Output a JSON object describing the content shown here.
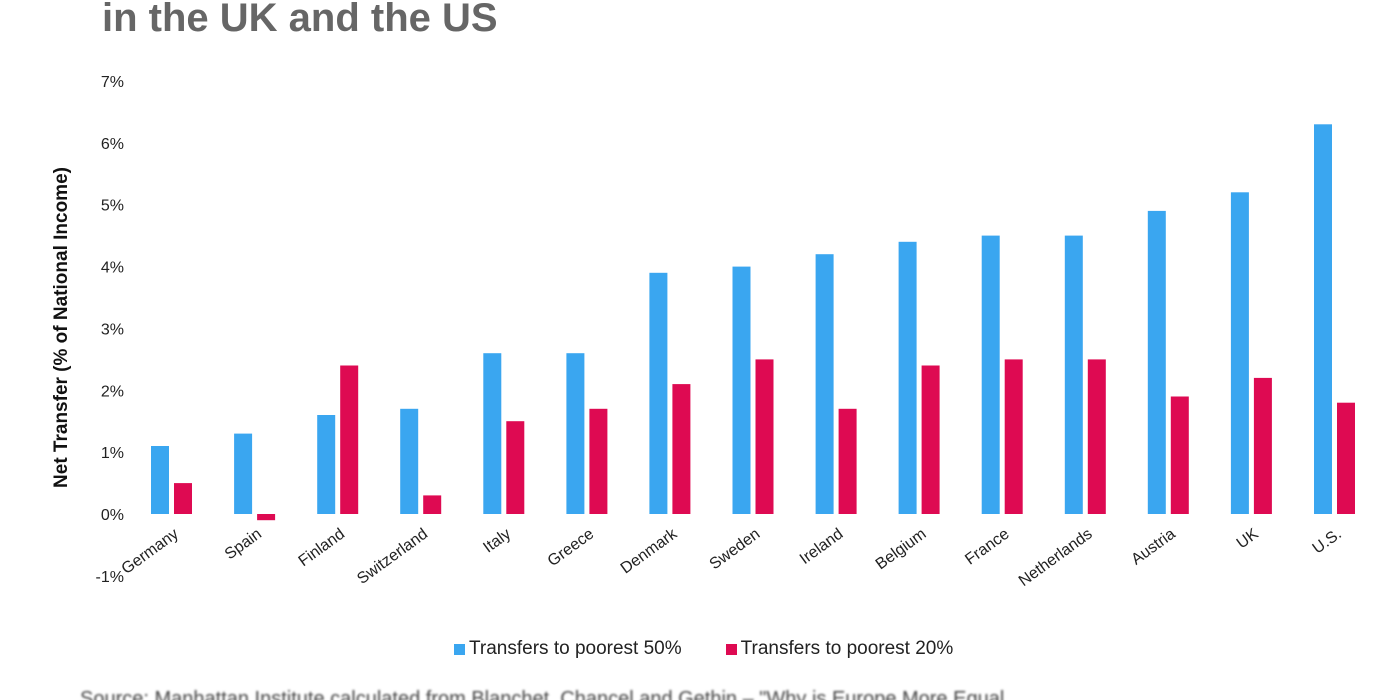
{
  "title": "in the UK and the US",
  "source": "Source: Manhattan Institute calculated from Blanchet, Chancel and Gethin – \"Why is Europe More Equal",
  "colors": {
    "series_50": "#3aa6f0",
    "series_20": "#de0a52"
  },
  "chart_data": {
    "type": "bar",
    "title": "in the UK and the US",
    "xlabel": "",
    "ylabel": "Net Transfer (% of National Income)",
    "ylim": [
      -1,
      7
    ],
    "yticks": [
      -1,
      0,
      1,
      2,
      3,
      4,
      5,
      6,
      7
    ],
    "ytick_labels": [
      "-1%",
      "0%",
      "1%",
      "2%",
      "3%",
      "4%",
      "5%",
      "6%",
      "7%"
    ],
    "grid": false,
    "legend_position": "bottom-center",
    "categories": [
      "Germany",
      "Spain",
      "Finland",
      "Switzerland",
      "Italy",
      "Greece",
      "Denmark",
      "Sweden",
      "Ireland",
      "Belgium",
      "France",
      "Netherlands",
      "Austria",
      "UK",
      "U.S."
    ],
    "series": [
      {
        "name": "Transfers to poorest 50%",
        "color": "#3aa6f0",
        "values": [
          1.1,
          1.3,
          1.6,
          1.7,
          2.6,
          2.6,
          3.9,
          4.0,
          4.2,
          4.4,
          4.5,
          4.5,
          4.9,
          5.2,
          6.3
        ]
      },
      {
        "name": "Transfers to poorest 20%",
        "color": "#de0a52",
        "values": [
          0.5,
          -0.1,
          2.4,
          0.3,
          1.5,
          1.7,
          2.1,
          2.5,
          1.7,
          2.4,
          2.5,
          2.5,
          1.9,
          2.2,
          1.8
        ]
      }
    ]
  }
}
